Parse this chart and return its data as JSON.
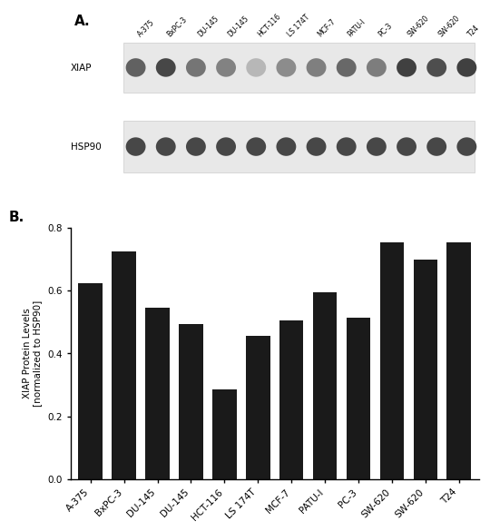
{
  "panel_A_label": "A.",
  "panel_B_label": "B.",
  "categories": [
    "A-375",
    "BxPC-3",
    "DU-145",
    "DU-145",
    "HCT-116",
    "LS 174T",
    "MCF-7",
    "PATU-I",
    "PC-3",
    "SW-620",
    "SW-620",
    "T24"
  ],
  "bar_values": [
    0.625,
    0.725,
    0.545,
    0.495,
    0.285,
    0.455,
    0.505,
    0.595,
    0.515,
    0.755,
    0.7,
    0.755
  ],
  "bar_color": "#1a1a1a",
  "ylabel": "XIAP Protein Levels\n[normalized to HSP90]",
  "ylim": [
    0.0,
    0.8
  ],
  "yticks": [
    0.0,
    0.2,
    0.4,
    0.6,
    0.8
  ],
  "xlabel": "",
  "western_labels": [
    "XIAP",
    "HSP90"
  ],
  "western_bg_color": "#e8e8e8",
  "western_band_color_xiap": "#888888",
  "western_band_color_hsp90": "#444444",
  "figure_bg": "#ffffff",
  "font_family": "Arial"
}
